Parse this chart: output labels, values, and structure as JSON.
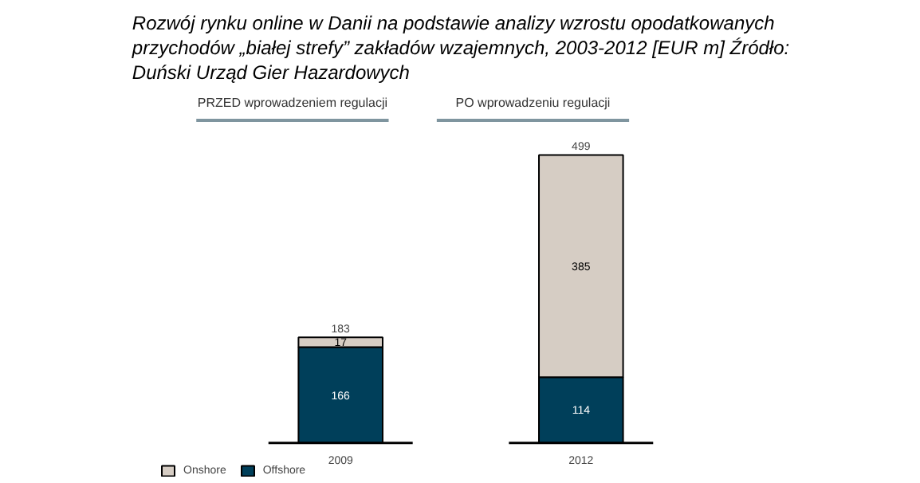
{
  "chart_data": {
    "type": "bar",
    "title": "Rozwój rynku online w Danii na podstawie analizy wzrostu opodatkowanych przychodów „białej strefy” zakładów wzajemnych, 2003-2012 [EUR m] Źródło: Duński Urząd Gier Hazardowych",
    "categories": [
      "2009",
      "2012"
    ],
    "stacked": true,
    "data_labels": true,
    "totals": [
      "183",
      "499"
    ],
    "legend": "bottom left",
    "series": [
      {
        "name": "Offshore",
        "color": "#003f5a",
        "values": [
          166,
          114
        ]
      },
      {
        "name": "Onshore",
        "color": "#d6cdc4",
        "values": [
          17,
          385
        ]
      }
    ],
    "annotations": [
      "PRZED wprowadzeniem regulacji",
      "PO wprowadzeniu regulacji"
    ]
  }
}
